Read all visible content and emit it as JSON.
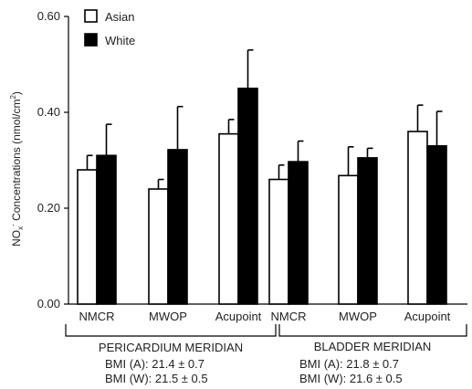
{
  "colors": {
    "asian_fill": "#ffffff",
    "white_fill": "#000000",
    "stroke": "#000000"
  },
  "chart_data": {
    "type": "bar",
    "ylabel_main": "NO",
    "ylabel_sub": "x",
    "ylabel_sup": "-",
    "ylabel_rest": " Concentrations (nmol/cm",
    "ylabel_sup2": "2",
    "ylabel_end": ")",
    "ylim": [
      0,
      0.6
    ],
    "yticks": [
      "0.00",
      "0.20",
      "0.40",
      "0.60"
    ],
    "ytick_values": [
      0.0,
      0.2,
      0.4,
      0.6
    ],
    "legend_position": "top-left",
    "categories": [
      "NMCR",
      "MWOP",
      "Acupoint",
      "NMCR",
      "MWOP",
      "Acupoint"
    ],
    "series": [
      {
        "name": "Asian",
        "values": [
          0.28,
          0.24,
          0.355,
          0.26,
          0.268,
          0.36
        ],
        "errors": [
          0.03,
          0.02,
          0.03,
          0.03,
          0.06,
          0.055
        ]
      },
      {
        "name": "White",
        "values": [
          0.31,
          0.322,
          0.45,
          0.297,
          0.305,
          0.33
        ],
        "errors": [
          0.065,
          0.09,
          0.08,
          0.043,
          0.02,
          0.072
        ]
      }
    ],
    "groups": [
      {
        "label": "PERICARDIUM MERIDIAN",
        "bmi_a": "BMI (A):  21.4 ± 0.7",
        "bmi_w": "BMI (W):  21.5 ± 0.5"
      },
      {
        "label": "BLADDER MERIDIAN",
        "bmi_a": "BMI (A):  21.8 ± 0.7",
        "bmi_w": "BMI (W):  21.6 ± 0.5"
      }
    ]
  }
}
